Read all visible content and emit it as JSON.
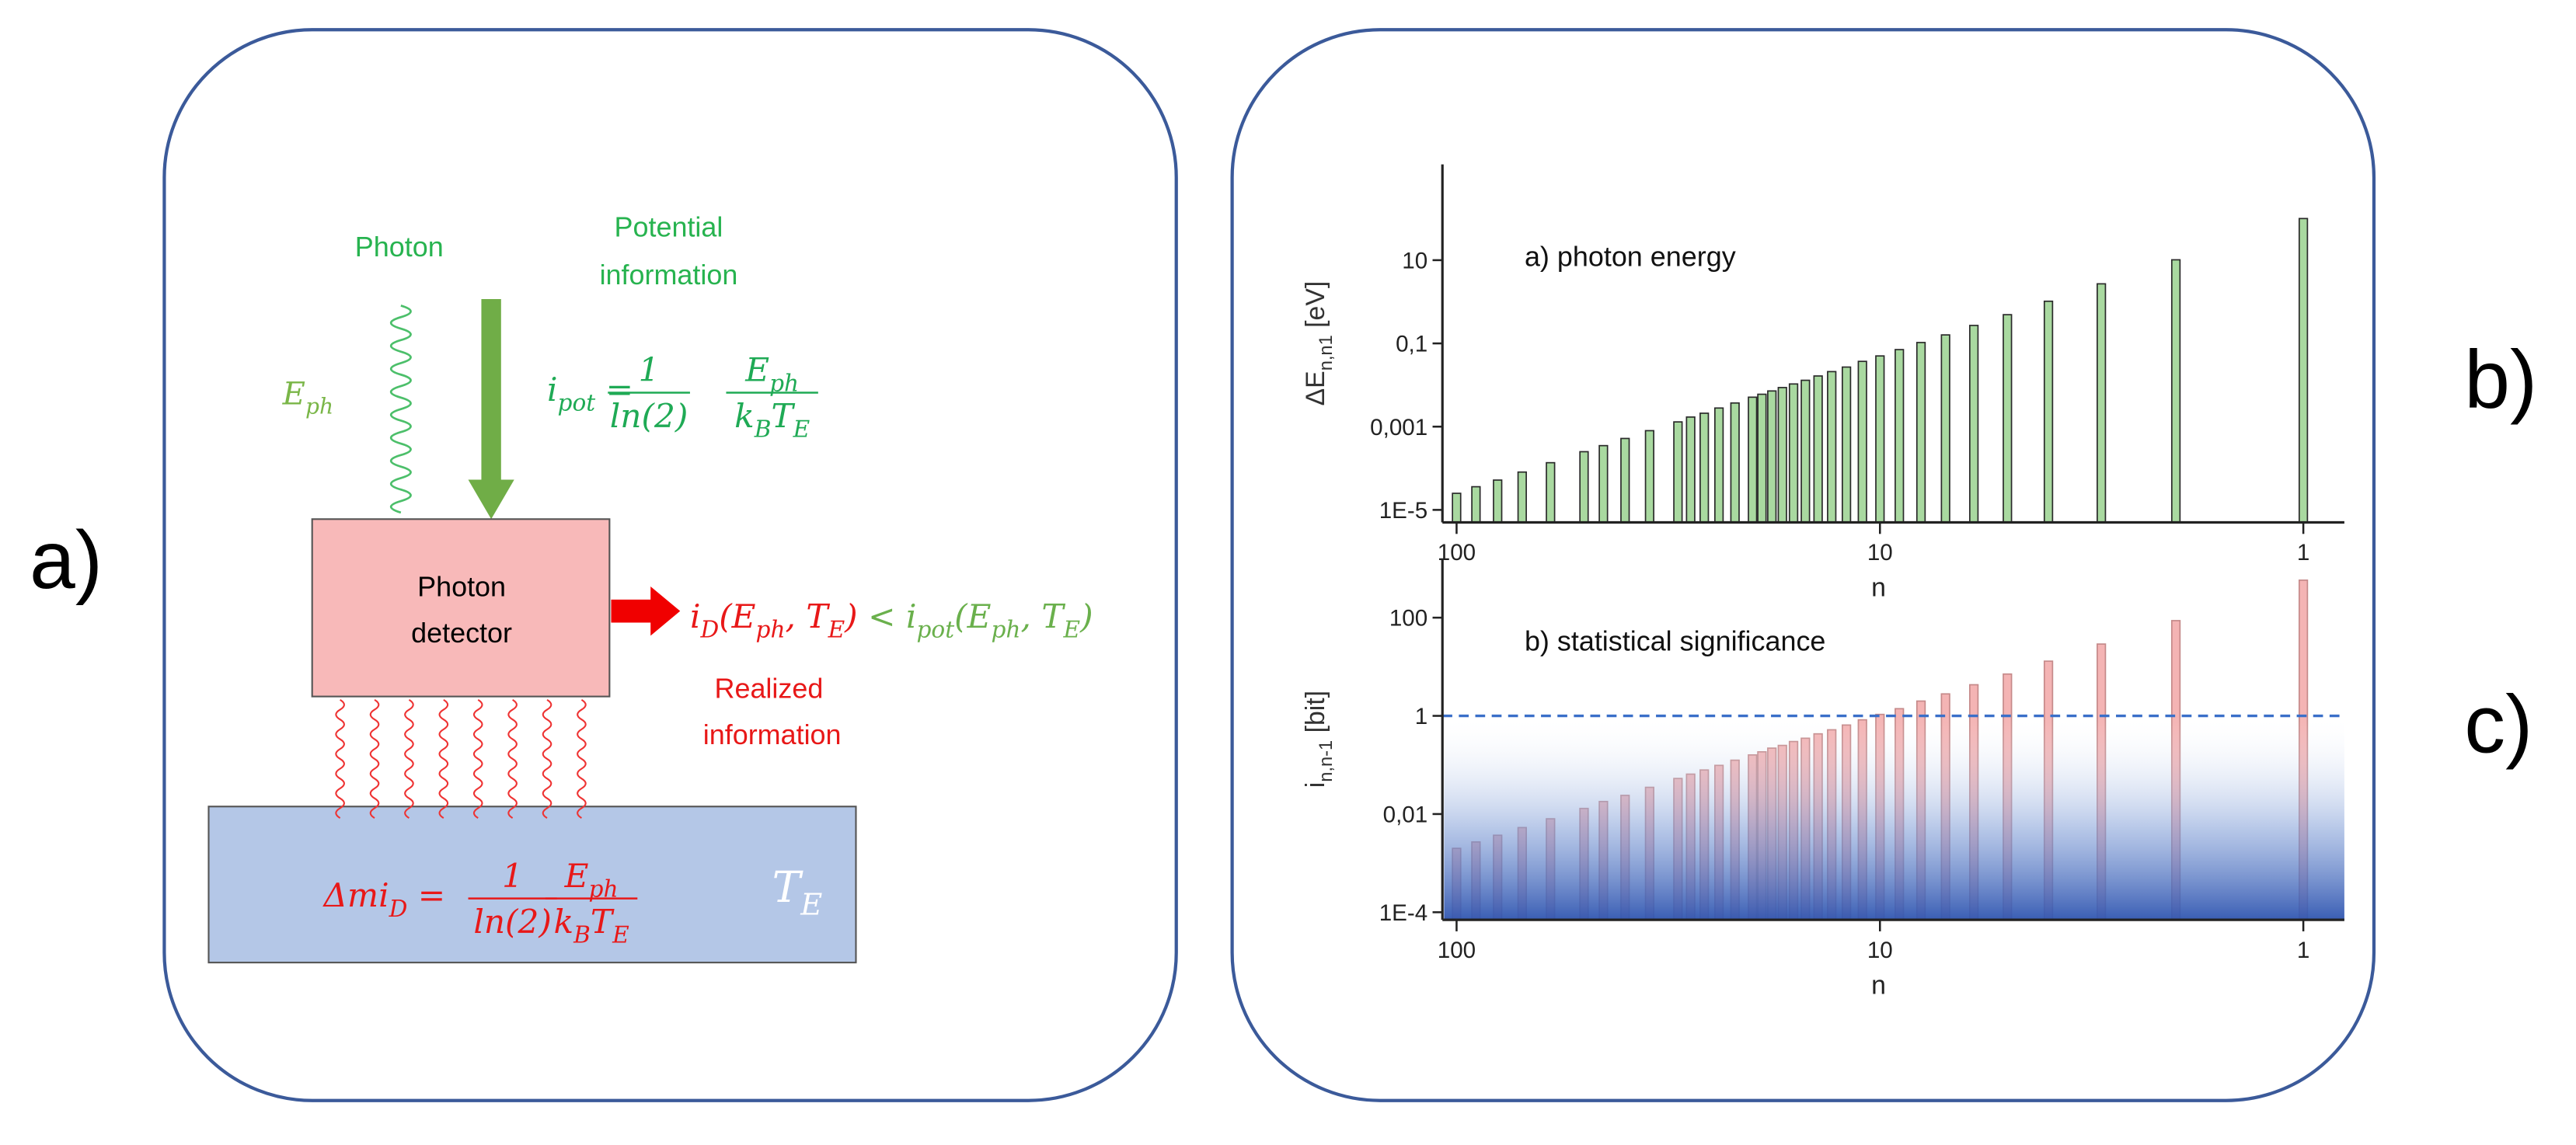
{
  "panel_labels": {
    "a": "a)",
    "b": "b)",
    "c": "c)"
  },
  "diagram": {
    "photon": "Photon",
    "potential_information": [
      "Potential",
      "information"
    ],
    "eph": [
      {
        "t": "E"
      },
      {
        "t": "ph",
        "sub": true
      }
    ],
    "i_pot_equation": {
      "lhs": [
        {
          "t": "i"
        },
        {
          "t": "pot",
          "sub": true
        },
        {
          "t": " ="
        }
      ],
      "frac1": {
        "num": [
          {
            "t": "1"
          }
        ],
        "den": [
          {
            "t": "ln(2)"
          }
        ]
      },
      "frac2": {
        "num": [
          {
            "t": "E"
          },
          {
            "t": "ph",
            "sub": true
          }
        ],
        "den": [
          {
            "t": "k"
          },
          {
            "t": "B",
            "sub": true
          },
          {
            "t": "T"
          },
          {
            "t": "E",
            "sub": true
          }
        ]
      }
    },
    "detector": [
      "Photon",
      "detector"
    ],
    "realized_equation": {
      "left": [
        {
          "t": "i"
        },
        {
          "t": "D",
          "sub": true
        },
        {
          "t": "(E"
        },
        {
          "t": "ph",
          "sub": true
        },
        {
          "t": ", T"
        },
        {
          "t": "E",
          "sub": true
        },
        {
          "t": ")"
        }
      ],
      "right": [
        {
          "t": " < i"
        },
        {
          "t": "pot",
          "sub": true
        },
        {
          "t": "(E"
        },
        {
          "t": "ph",
          "sub": true
        },
        {
          "t": ", T"
        },
        {
          "t": "E",
          "sub": true
        },
        {
          "t": ")"
        }
      ]
    },
    "realized_information": [
      "Realized",
      "information"
    ],
    "dmi_equation": {
      "lhs": [
        {
          "t": "Δmi"
        },
        {
          "t": "D",
          "sub": true
        },
        {
          "t": " ="
        }
      ],
      "frac1": {
        "num": [
          {
            "t": "1"
          }
        ],
        "den": [
          {
            "t": "ln(2)"
          }
        ]
      },
      "frac2": {
        "num": [
          {
            "t": "E"
          },
          {
            "t": "ph",
            "sub": true
          }
        ],
        "den": [
          {
            "t": "k"
          },
          {
            "t": "B",
            "sub": true
          },
          {
            "t": "T"
          },
          {
            "t": "E",
            "sub": true
          }
        ]
      }
    },
    "te": [
      {
        "t": "T"
      },
      {
        "t": "E",
        "sub": true
      }
    ]
  },
  "chart_data": [
    {
      "type": "bar",
      "title": "a)  photon energy",
      "ylabel": [
        {
          "t": "ΔE"
        },
        {
          "t": "n,n1",
          "sub": true
        },
        {
          "t": " [eV]"
        }
      ],
      "xlabel": "n",
      "log_x": true,
      "log_y": true,
      "xlim": [
        108,
        0.8
      ],
      "xticks": [
        100,
        10,
        1
      ],
      "ylim": [
        5e-06,
        2000
      ],
      "yticks": [
        {
          "value": 1e-05,
          "label": "1E-5"
        },
        {
          "value": 0.001,
          "label": "0,001"
        },
        {
          "value": 0.1,
          "label": "0,1"
        },
        10
      ],
      "color": "#a9d9a0",
      "x": [
        1,
        2,
        3,
        4,
        5,
        6,
        7,
        8,
        9,
        10,
        11,
        12,
        13,
        14,
        15,
        16,
        17,
        18,
        19,
        20,
        22,
        24,
        26,
        28,
        30,
        35,
        40,
        45,
        50,
        60,
        70,
        80,
        90,
        100
      ],
      "values": [
        100,
        10.2,
        2.7,
        1.03,
        0.49,
        0.27,
        0.16,
        0.105,
        0.071,
        0.05,
        0.037,
        0.027,
        0.021,
        0.0165,
        0.013,
        0.0106,
        0.0087,
        0.0072,
        0.006,
        0.0051,
        0.0037,
        0.0028,
        0.0021,
        0.0017,
        0.0013,
        0.0008,
        0.00052,
        0.00035,
        0.00025,
        0.000136,
        8.1e-05,
        5.2e-05,
        3.6e-05,
        2.5e-05
      ]
    },
    {
      "type": "bar",
      "title": "b)  statistical significance",
      "ylabel": [
        {
          "t": "i"
        },
        {
          "t": "n,n-1",
          "sub": true
        },
        {
          "t": " [bit]"
        }
      ],
      "xlabel": "n",
      "log_x": true,
      "log_y": true,
      "xlim": [
        108,
        0.8
      ],
      "xticks": [
        100,
        10,
        1
      ],
      "ylim": [
        7e-05,
        1600
      ],
      "yticks": [
        {
          "value": 0.0001,
          "label": "1E-4"
        },
        {
          "value": 0.01,
          "label": "0,01"
        },
        1,
        100
      ],
      "reference_line": 1,
      "color": "#f4b4b4",
      "x": [
        1,
        2,
        3,
        4,
        5,
        6,
        7,
        8,
        9,
        10,
        11,
        12,
        13,
        14,
        15,
        16,
        17,
        18,
        19,
        20,
        22,
        24,
        26,
        28,
        30,
        35,
        40,
        45,
        50,
        60,
        70,
        80,
        90,
        100
      ],
      "values": [
        580,
        87,
        29,
        13,
        7.1,
        4.3,
        2.8,
        2.0,
        1.4,
        1.07,
        0.83,
        0.65,
        0.52,
        0.43,
        0.35,
        0.3,
        0.25,
        0.22,
        0.185,
        0.16,
        0.125,
        0.098,
        0.079,
        0.065,
        0.053,
        0.035,
        0.024,
        0.018,
        0.013,
        0.008,
        0.0053,
        0.0037,
        0.0027,
        0.002
      ]
    }
  ]
}
